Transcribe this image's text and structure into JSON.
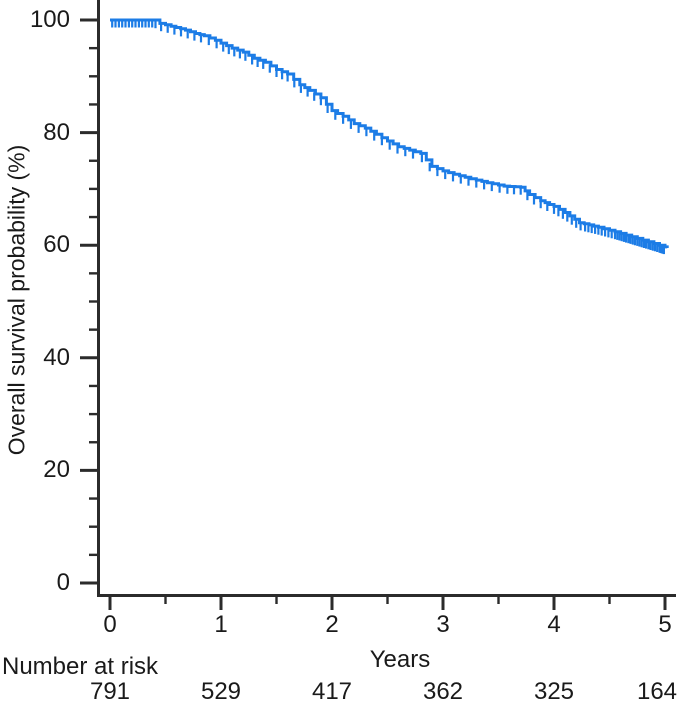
{
  "figure": {
    "background": "#ffffff",
    "curve_color": "#1c7ce6",
    "axis_color": "#2b2b2b",
    "text_color": "#1a1a1a"
  },
  "chart_data": {
    "type": "line",
    "subtype": "kaplan-meier-step",
    "title": "",
    "xlabel": "Years",
    "ylabel": "Overall survival probability (%)",
    "xlim": [
      0,
      5
    ],
    "ylim": [
      0,
      100
    ],
    "x_ticks": [
      0,
      1,
      2,
      3,
      4,
      5
    ],
    "y_ticks": [
      0,
      20,
      40,
      60,
      80,
      100
    ],
    "x_minor_ticks": [
      0.5,
      1.5,
      2.5,
      3.5,
      4.5
    ],
    "y_minor_ticks": [
      5,
      10,
      15,
      25,
      30,
      35,
      45,
      50,
      55,
      65,
      70,
      75,
      85,
      90,
      95
    ],
    "grid": false,
    "legend": false,
    "series": [
      {
        "name": "Overall survival",
        "color": "#1c7ce6",
        "step_points": [
          [
            0.0,
            100
          ],
          [
            0.4,
            100
          ],
          [
            0.45,
            99.4
          ],
          [
            0.55,
            98.9
          ],
          [
            0.68,
            98.2
          ],
          [
            0.77,
            97.6
          ],
          [
            0.85,
            97.2
          ],
          [
            0.95,
            96.4
          ],
          [
            1.0,
            95.9
          ],
          [
            1.1,
            95.0
          ],
          [
            1.2,
            94.3
          ],
          [
            1.3,
            93.2
          ],
          [
            1.4,
            92.5
          ],
          [
            1.5,
            91.2
          ],
          [
            1.6,
            90.4
          ],
          [
            1.71,
            88.5
          ],
          [
            1.8,
            87.5
          ],
          [
            1.9,
            86.2
          ],
          [
            2.0,
            83.9
          ],
          [
            2.1,
            82.9
          ],
          [
            2.2,
            81.6
          ],
          [
            2.3,
            80.8
          ],
          [
            2.4,
            79.7
          ],
          [
            2.5,
            78.5
          ],
          [
            2.6,
            77.5
          ],
          [
            2.7,
            76.9
          ],
          [
            2.8,
            76.3
          ],
          [
            2.9,
            74.0
          ],
          [
            3.0,
            73.2
          ],
          [
            3.1,
            72.6
          ],
          [
            3.25,
            71.8
          ],
          [
            3.4,
            71.1
          ],
          [
            3.55,
            70.5
          ],
          [
            3.7,
            70.3
          ],
          [
            3.78,
            69.0
          ],
          [
            3.88,
            67.9
          ],
          [
            4.0,
            66.9
          ],
          [
            4.1,
            65.8
          ],
          [
            4.23,
            64.0
          ],
          [
            4.4,
            63.2
          ],
          [
            4.55,
            62.4
          ],
          [
            4.7,
            61.5
          ],
          [
            4.85,
            60.6
          ],
          [
            5.0,
            59.7
          ],
          [
            5.02,
            59.5
          ]
        ],
        "censor_times": [
          0.02,
          0.05,
          0.08,
          0.11,
          0.14,
          0.17,
          0.2,
          0.23,
          0.26,
          0.29,
          0.32,
          0.35,
          0.38,
          0.41,
          0.46,
          0.52,
          0.58,
          0.64,
          0.7,
          0.76,
          0.82,
          0.89,
          0.96,
          1.02,
          1.07,
          1.12,
          1.17,
          1.22,
          1.28,
          1.33,
          1.38,
          1.44,
          1.5,
          1.55,
          1.6,
          1.66,
          1.72,
          1.78,
          1.84,
          1.9,
          1.96,
          2.03,
          2.1,
          2.17,
          2.24,
          2.31,
          2.38,
          2.45,
          2.52,
          2.59,
          2.66,
          2.73,
          2.81,
          2.88,
          2.95,
          3.02,
          3.09,
          3.16,
          3.23,
          3.3,
          3.37,
          3.44,
          3.51,
          3.58,
          3.64,
          3.7,
          3.76,
          3.82,
          3.88,
          3.94,
          4.0,
          4.04,
          4.08,
          4.12,
          4.16,
          4.2,
          4.24,
          4.28,
          4.31,
          4.34,
          4.37,
          4.4,
          4.43,
          4.46,
          4.49,
          4.52,
          4.55,
          4.57,
          4.59,
          4.61,
          4.63,
          4.65,
          4.67,
          4.69,
          4.71,
          4.73,
          4.75,
          4.77,
          4.79,
          4.81,
          4.83,
          4.85,
          4.87,
          4.89,
          4.91,
          4.93,
          4.95,
          4.96,
          4.97,
          4.98,
          4.99
        ]
      }
    ],
    "risk_table": {
      "label": "Number at risk",
      "times": [
        0,
        1,
        2,
        3,
        4,
        5
      ],
      "counts": [
        791,
        529,
        417,
        362,
        325,
        164
      ]
    }
  }
}
